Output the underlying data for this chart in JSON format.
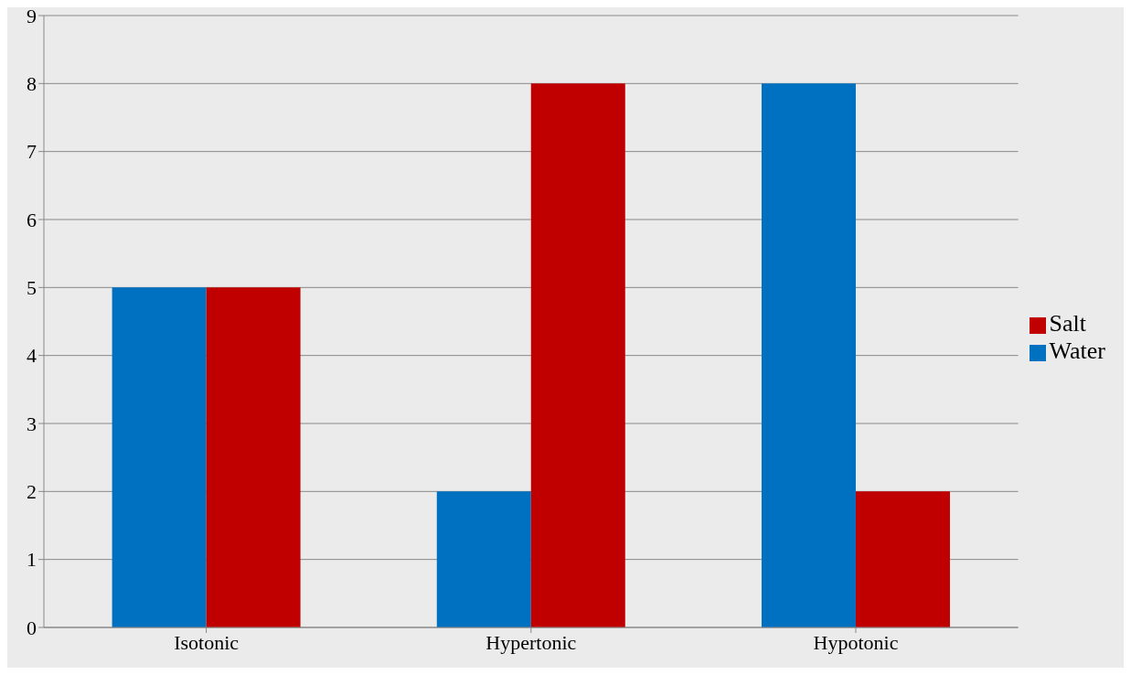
{
  "chart_data": {
    "type": "bar",
    "categories": [
      "Isotonic",
      "Hypertonic",
      "Hypotonic"
    ],
    "series": [
      {
        "name": "Water",
        "color": "#0070c0",
        "values": [
          5,
          2,
          8
        ]
      },
      {
        "name": "Salt",
        "color": "#c00000",
        "values": [
          5,
          8,
          2
        ]
      }
    ],
    "ylim": [
      0,
      9
    ],
    "yticks": [
      0,
      1,
      2,
      3,
      4,
      5,
      6,
      7,
      8,
      9
    ],
    "grid": "y",
    "legend": "right"
  }
}
